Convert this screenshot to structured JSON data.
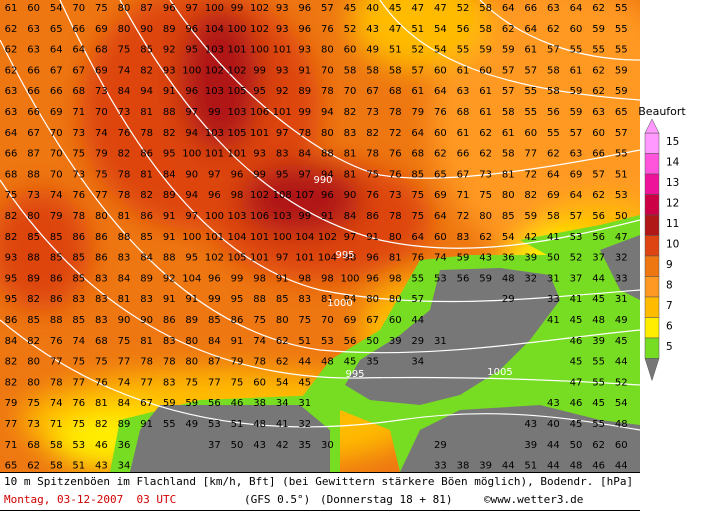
{
  "map": {
    "values": [
      [
        61,
        60,
        54,
        70,
        75,
        80,
        87,
        96,
        97,
        100,
        99,
        102,
        93,
        96,
        57,
        45,
        40,
        45,
        47,
        47,
        52,
        58,
        64,
        66,
        63,
        64,
        62,
        55
      ],
      [
        62,
        63,
        65,
        66,
        69,
        80,
        90,
        89,
        96,
        104,
        100,
        102,
        93,
        96,
        76,
        52,
        43,
        47,
        51,
        54,
        56,
        58,
        62,
        64,
        62,
        60,
        59,
        55
      ],
      [
        62,
        63,
        64,
        64,
        68,
        75,
        85,
        92,
        95,
        103,
        101,
        100,
        101,
        93,
        80,
        60,
        49,
        51,
        52,
        54,
        55,
        59,
        59,
        61,
        57,
        55,
        55,
        55
      ],
      [
        62,
        66,
        67,
        67,
        69,
        74,
        82,
        93,
        100,
        102,
        102,
        99,
        93,
        91,
        70,
        58,
        58,
        58,
        57,
        60,
        61,
        60,
        57,
        57,
        58,
        61,
        62,
        59
      ],
      [
        63,
        66,
        66,
        68,
        73,
        84,
        94,
        91,
        96,
        103,
        105,
        95,
        92,
        89,
        78,
        70,
        67,
        68,
        61,
        64,
        63,
        61,
        57,
        55,
        58,
        59,
        62,
        59
      ],
      [
        63,
        66,
        69,
        71,
        70,
        73,
        81,
        88,
        97,
        99,
        103,
        106,
        101,
        99,
        94,
        82,
        73,
        78,
        79,
        76,
        68,
        61,
        58,
        55,
        56,
        59,
        63,
        65
      ],
      [
        64,
        67,
        70,
        73,
        74,
        76,
        78,
        82,
        94,
        103,
        105,
        101,
        97,
        78,
        80,
        83,
        82,
        72,
        64,
        60,
        61,
        62,
        61,
        60,
        55,
        57,
        60,
        57
      ],
      [
        66,
        87,
        70,
        75,
        79,
        82,
        86,
        95,
        100,
        101,
        101,
        93,
        83,
        84,
        88,
        81,
        78,
        76,
        68,
        62,
        66,
        62,
        58,
        77,
        62,
        63,
        66,
        55
      ],
      [
        68,
        88,
        70,
        73,
        75,
        78,
        81,
        84,
        90,
        97,
        96,
        99,
        95,
        97,
        94,
        81,
        75,
        76,
        85,
        65,
        67,
        73,
        81,
        72,
        64,
        69,
        57,
        51
      ],
      [
        75,
        73,
        74,
        76,
        77,
        78,
        82,
        89,
        94,
        96,
        98,
        102,
        108,
        107,
        96,
        90,
        76,
        73,
        75,
        69,
        71,
        75,
        80,
        82,
        69,
        64,
        62,
        53
      ],
      [
        82,
        80,
        79,
        78,
        80,
        81,
        86,
        91,
        97,
        100,
        103,
        106,
        103,
        99,
        91,
        84,
        86,
        78,
        75,
        64,
        72,
        80,
        85,
        59,
        58,
        57,
        56,
        50
      ],
      [
        82,
        85,
        85,
        86,
        86,
        88,
        85,
        91,
        100,
        101,
        104,
        101,
        100,
        104,
        102,
        97,
        91,
        80,
        64,
        60,
        83,
        62,
        54,
        42,
        41,
        53,
        56,
        47
      ],
      [
        93,
        88,
        85,
        85,
        86,
        83,
        84,
        88,
        95,
        102,
        105,
        101,
        97,
        101,
        104,
        98,
        96,
        81,
        76,
        74,
        59,
        43,
        36,
        39,
        50,
        52,
        37,
        32
      ],
      [
        95,
        89,
        86,
        85,
        83,
        84,
        89,
        92,
        104,
        96,
        99,
        98,
        91,
        98,
        98,
        100,
        96,
        98,
        55,
        53,
        56,
        59,
        48,
        32,
        31,
        37,
        44,
        33
      ],
      [
        95,
        82,
        86,
        83,
        83,
        81,
        83,
        91,
        91,
        99,
        95,
        88,
        85,
        83,
        81,
        84,
        80,
        80,
        57,
        null,
        null,
        null,
        29,
        null,
        33,
        41,
        45,
        31
      ],
      [
        86,
        85,
        88,
        85,
        83,
        90,
        90,
        86,
        89,
        85,
        86,
        75,
        80,
        75,
        70,
        69,
        67,
        60,
        44,
        null,
        null,
        null,
        null,
        null,
        41,
        45,
        48,
        49
      ],
      [
        84,
        82,
        76,
        74,
        68,
        75,
        81,
        83,
        80,
        84,
        91,
        74,
        62,
        51,
        53,
        56,
        50,
        39,
        29,
        31,
        null,
        null,
        null,
        null,
        null,
        46,
        39,
        45
      ],
      [
        82,
        80,
        77,
        75,
        75,
        77,
        78,
        78,
        80,
        87,
        79,
        78,
        62,
        44,
        48,
        45,
        35,
        null,
        34,
        null,
        null,
        null,
        null,
        null,
        null,
        45,
        55,
        44
      ],
      [
        82,
        80,
        78,
        77,
        76,
        74,
        77,
        83,
        75,
        77,
        75,
        60,
        54,
        45,
        null,
        null,
        null,
        null,
        null,
        null,
        null,
        null,
        null,
        null,
        null,
        47,
        55,
        52
      ],
      [
        79,
        75,
        74,
        76,
        81,
        84,
        67,
        59,
        59,
        56,
        46,
        38,
        34,
        31,
        null,
        null,
        null,
        null,
        null,
        null,
        null,
        null,
        null,
        null,
        43,
        46,
        45,
        54
      ],
      [
        77,
        73,
        71,
        75,
        82,
        89,
        91,
        55,
        49,
        53,
        51,
        48,
        41,
        32,
        null,
        null,
        null,
        null,
        null,
        null,
        null,
        null,
        null,
        43,
        40,
        45,
        55,
        48
      ],
      [
        71,
        68,
        58,
        53,
        46,
        36,
        null,
        null,
        null,
        37,
        50,
        43,
        42,
        35,
        30,
        null,
        null,
        null,
        null,
        29,
        null,
        null,
        null,
        39,
        44,
        50,
        62,
        60
      ],
      [
        65,
        62,
        58,
        51,
        43,
        34,
        null,
        null,
        null,
        null,
        null,
        null,
        null,
        null,
        null,
        null,
        null,
        null,
        null,
        33,
        38,
        39,
        44,
        51,
        44,
        48,
        46,
        44
      ]
    ],
    "isobar_labels": [
      "990",
      "995",
      "1000",
      "995",
      "1005"
    ]
  },
  "legend": {
    "title": "Beaufort",
    "items": [
      {
        "label": "15",
        "color": "#ff99ff"
      },
      {
        "label": "14",
        "color": "#ff55dd"
      },
      {
        "label": "13",
        "color": "#ee1199"
      },
      {
        "label": "12",
        "color": "#cc0044"
      },
      {
        "label": "11",
        "color": "#b01818"
      },
      {
        "label": "10",
        "color": "#dd4411"
      },
      {
        "label": "9",
        "color": "#ee7711"
      },
      {
        "label": "8",
        "color": "#ff9922"
      },
      {
        "label": "7",
        "color": "#ffbb00"
      },
      {
        "label": "6",
        "color": "#ffee00"
      },
      {
        "label": "5",
        "color": "#77dd22"
      }
    ]
  },
  "footer": {
    "line1": "10 m Spitzenböen im Flachland [km/h, Bft] (bei Gewittern stärkere Böen möglich), Bodendr. [hPa]",
    "date": "Montag, 03-12-2007  03 UTC",
    "model": "(GFS 0.5°)",
    "run": "(Donnerstag 18 + 81)",
    "source": "©www.wetter3.de"
  }
}
